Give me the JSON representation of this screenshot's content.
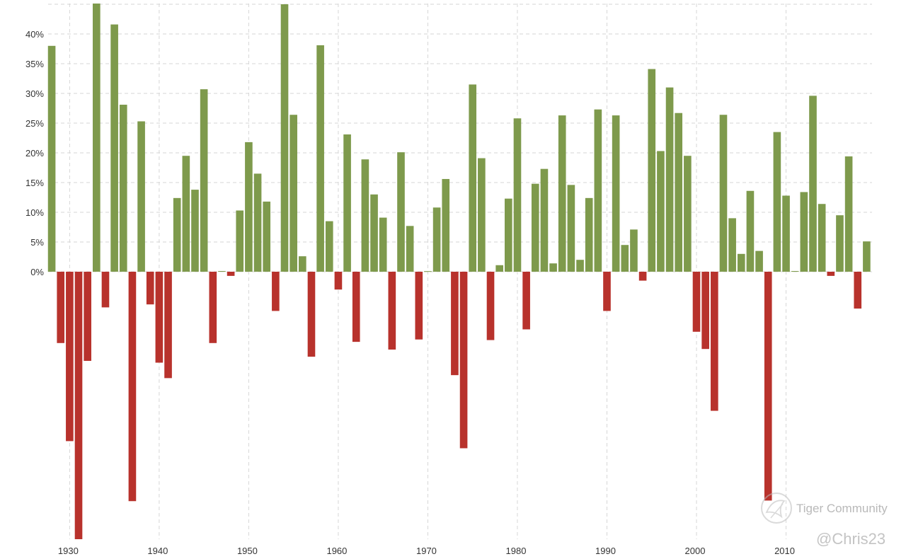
{
  "chart_data": {
    "type": "bar",
    "x": [
      1928,
      1929,
      1930,
      1931,
      1932,
      1933,
      1934,
      1935,
      1936,
      1937,
      1938,
      1939,
      1940,
      1941,
      1942,
      1943,
      1944,
      1945,
      1946,
      1947,
      1948,
      1949,
      1950,
      1951,
      1952,
      1953,
      1954,
      1955,
      1956,
      1957,
      1958,
      1959,
      1960,
      1961,
      1962,
      1963,
      1964,
      1965,
      1966,
      1967,
      1968,
      1969,
      1970,
      1971,
      1972,
      1973,
      1974,
      1975,
      1976,
      1977,
      1978,
      1979,
      1980,
      1981,
      1982,
      1983,
      1984,
      1985,
      1986,
      1987,
      1988,
      1989,
      1990,
      1991,
      1992,
      1993,
      1994,
      1995,
      1996,
      1997,
      1998,
      1999,
      2000,
      2001,
      2002,
      2003,
      2004,
      2005,
      2006,
      2007,
      2008,
      2009,
      2010,
      2011,
      2012,
      2013,
      2014,
      2015,
      2016,
      2017,
      2018,
      2019
    ],
    "values": [
      38.0,
      -12.0,
      -28.5,
      -47.0,
      -15.0,
      46.6,
      -6.0,
      41.6,
      28.1,
      -38.6,
      25.3,
      -5.5,
      -15.3,
      -17.9,
      12.4,
      19.5,
      13.8,
      30.7,
      -12.0,
      0.0,
      -0.7,
      10.3,
      21.8,
      16.5,
      11.8,
      -6.6,
      45.0,
      26.4,
      2.6,
      -14.3,
      38.1,
      8.5,
      -3.0,
      23.1,
      -11.8,
      18.9,
      13.0,
      9.1,
      -13.1,
      20.1,
      7.7,
      -11.4,
      0.1,
      10.8,
      15.6,
      -17.4,
      -29.7,
      31.5,
      19.1,
      -11.5,
      1.1,
      12.3,
      25.8,
      -9.7,
      14.8,
      17.3,
      1.4,
      26.3,
      14.6,
      2.0,
      12.4,
      27.3,
      -6.6,
      26.3,
      4.5,
      7.1,
      -1.5,
      34.1,
      20.3,
      31.0,
      26.7,
      19.5,
      -10.1,
      -13.0,
      -23.4,
      26.4,
      9.0,
      3.0,
      13.6,
      3.5,
      -38.5,
      23.5,
      12.8,
      0.0,
      13.4,
      29.6,
      11.4,
      -0.7,
      9.5,
      19.4,
      -6.2,
      5.1
    ],
    "positive_color": "#7e9a4c",
    "negative_color": "#b8322c",
    "y_ticks": [
      "0%",
      "5%",
      "10%",
      "15%",
      "20%",
      "25%",
      "30%",
      "35%",
      "40%"
    ],
    "y_tick_values": [
      0,
      5,
      10,
      15,
      20,
      25,
      30,
      35,
      40
    ],
    "x_ticks": [
      "1930",
      "1940",
      "1950",
      "1960",
      "1970",
      "1980",
      "1990",
      "2000",
      "2010"
    ],
    "x_tick_values": [
      1930,
      1940,
      1950,
      1960,
      1970,
      1980,
      1990,
      2000,
      2010
    ],
    "ylim": [
      -45,
      45
    ],
    "xlim": [
      1927.6,
      2019.6
    ],
    "grid": true,
    "title": "",
    "xlabel": "",
    "ylabel": ""
  },
  "watermark": {
    "brand": "Tiger Community",
    "user": "@Chris23"
  }
}
